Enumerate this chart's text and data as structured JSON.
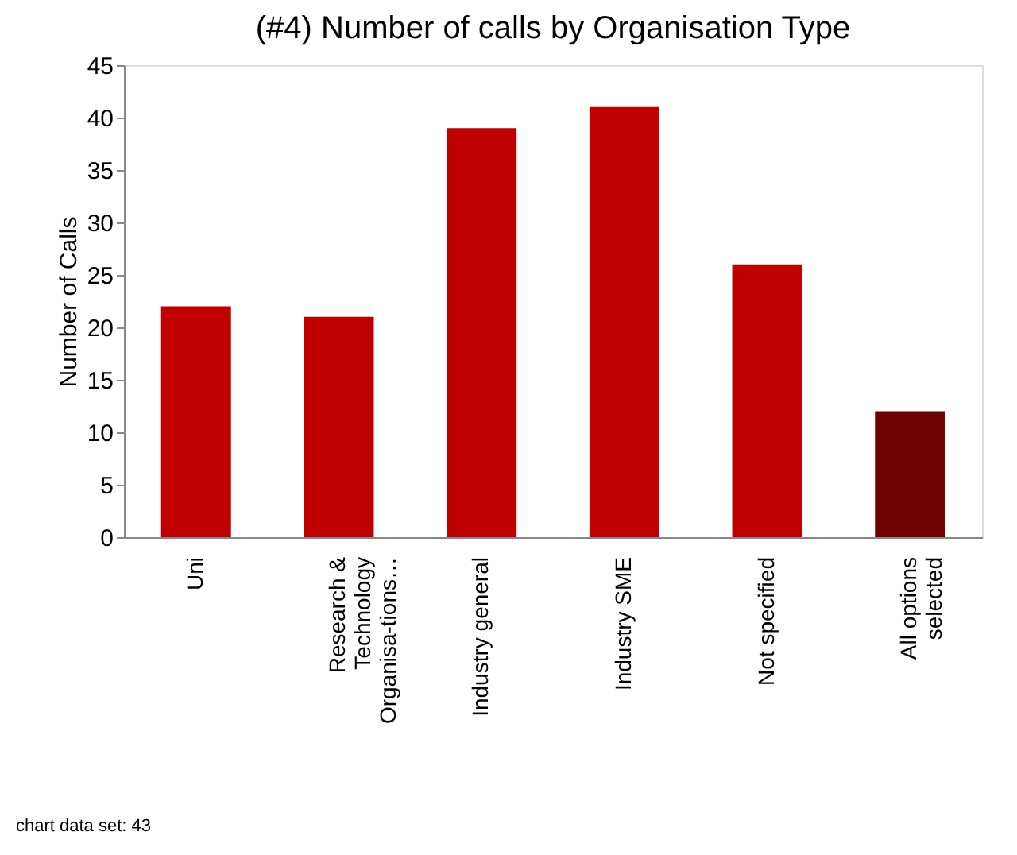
{
  "chart_data": {
    "type": "bar",
    "title": "(#4) Number of calls by Organisation Type",
    "ylabel": "Number of Calls",
    "categories": [
      "Uni",
      "Research & Technology Organisa-tions…",
      "Industry general",
      "Industry SME",
      "Not specified",
      "All options selected"
    ],
    "values": [
      22,
      21,
      39,
      41,
      26,
      12
    ],
    "colors": [
      "#c00000",
      "#c00000",
      "#c00000",
      "#c00000",
      "#c00000",
      "#6f0000"
    ],
    "ylim": [
      0,
      45
    ],
    "yticks": [
      0,
      5,
      10,
      15,
      20,
      25,
      30,
      35,
      40,
      45
    ],
    "grid": false,
    "annotations": [
      "chart data set: 43"
    ]
  }
}
